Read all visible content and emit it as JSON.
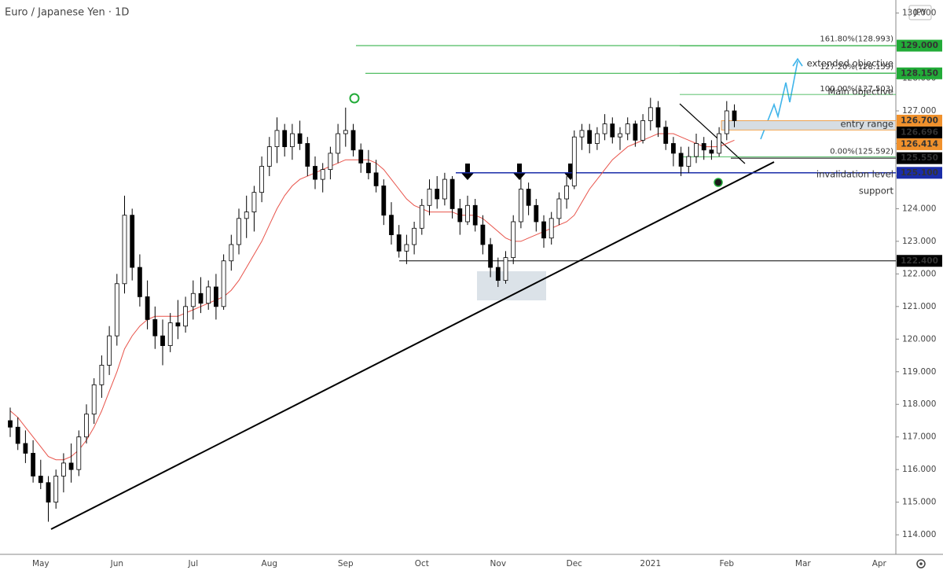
{
  "chart_data": {
    "type": "candlestick",
    "title": "Euro / Japanese Yen · 1D",
    "currency": "JPY",
    "categories": [
      null,
      null,
      null,
      null,
      "May",
      null,
      null,
      null,
      null,
      null,
      null,
      null,
      null,
      null,
      "Jun",
      null,
      null,
      null,
      null,
      null,
      null,
      null,
      null,
      null,
      "Jul",
      null,
      null,
      null,
      null,
      null,
      null,
      null,
      null,
      null,
      "Aug",
      null,
      null,
      null,
      null,
      null,
      null,
      null,
      null,
      null,
      "Sep",
      null,
      null,
      null,
      null,
      null,
      null,
      null,
      null,
      null,
      "Oct",
      null,
      null,
      null,
      null,
      null,
      null,
      null,
      null,
      null,
      "Nov",
      null,
      null,
      null,
      null,
      null,
      null,
      null,
      null,
      null,
      "Dec",
      null,
      null,
      null,
      null,
      null,
      null,
      null,
      null,
      null,
      "2021",
      null,
      null,
      null,
      null,
      null,
      null,
      null,
      null,
      null,
      "Feb",
      null,
      null,
      null,
      null,
      null,
      null,
      null,
      null,
      null,
      "Mar",
      null,
      null,
      null,
      null,
      null,
      null,
      null,
      null,
      null,
      "Apr"
    ],
    "ohlc": [
      [
        117.5,
        117.9,
        117.0,
        117.3
      ],
      [
        117.3,
        117.6,
        116.6,
        116.8
      ],
      [
        116.8,
        117.2,
        116.2,
        116.5
      ],
      [
        116.5,
        116.9,
        115.6,
        115.8
      ],
      [
        115.8,
        116.3,
        115.4,
        115.6
      ],
      [
        115.6,
        115.8,
        114.4,
        115.0
      ],
      [
        115.0,
        116.0,
        114.8,
        115.8
      ],
      [
        115.8,
        116.5,
        115.3,
        116.2
      ],
      [
        116.2,
        116.8,
        115.6,
        116.0
      ],
      [
        116.0,
        117.2,
        115.8,
        117.0
      ],
      [
        117.0,
        118.0,
        116.8,
        117.7
      ],
      [
        117.7,
        118.8,
        117.4,
        118.6
      ],
      [
        118.6,
        119.5,
        118.2,
        119.2
      ],
      [
        119.2,
        120.4,
        118.9,
        120.1
      ],
      [
        120.1,
        122.0,
        119.8,
        121.7
      ],
      [
        121.7,
        124.4,
        121.4,
        123.8
      ],
      [
        123.8,
        124.0,
        121.8,
        122.2
      ],
      [
        122.2,
        122.6,
        121.0,
        121.3
      ],
      [
        121.3,
        121.8,
        120.3,
        120.6
      ],
      [
        120.6,
        121.0,
        119.7,
        120.1
      ],
      [
        120.1,
        120.6,
        119.2,
        119.8
      ],
      [
        119.8,
        120.8,
        119.6,
        120.5
      ],
      [
        120.5,
        121.2,
        120.0,
        120.4
      ],
      [
        120.4,
        121.3,
        120.2,
        121.0
      ],
      [
        121.0,
        121.8,
        120.6,
        121.4
      ],
      [
        121.4,
        121.9,
        120.8,
        121.1
      ],
      [
        121.1,
        121.8,
        120.9,
        121.6
      ],
      [
        121.6,
        122.0,
        120.6,
        121.0
      ],
      [
        121.0,
        122.6,
        120.9,
        122.4
      ],
      [
        122.4,
        123.2,
        122.1,
        122.9
      ],
      [
        122.9,
        124.0,
        122.6,
        123.7
      ],
      [
        123.7,
        124.4,
        123.1,
        123.9
      ],
      [
        123.9,
        124.7,
        123.3,
        124.5
      ],
      [
        124.5,
        125.6,
        124.2,
        125.3
      ],
      [
        125.3,
        126.2,
        125.0,
        125.9
      ],
      [
        125.9,
        126.8,
        125.4,
        126.4
      ],
      [
        126.4,
        126.6,
        125.6,
        125.9
      ],
      [
        125.9,
        126.6,
        125.5,
        126.3
      ],
      [
        126.3,
        126.7,
        125.8,
        126.0
      ],
      [
        126.0,
        126.2,
        125.0,
        125.3
      ],
      [
        125.3,
        125.6,
        124.6,
        124.9
      ],
      [
        124.9,
        125.4,
        124.5,
        125.2
      ],
      [
        125.2,
        125.9,
        124.9,
        125.7
      ],
      [
        125.7,
        126.6,
        125.4,
        126.3
      ],
      [
        126.3,
        127.1,
        125.9,
        126.4
      ],
      [
        126.4,
        126.6,
        125.6,
        125.8
      ],
      [
        125.8,
        126.0,
        125.1,
        125.4
      ],
      [
        125.4,
        125.8,
        124.9,
        125.1
      ],
      [
        125.1,
        125.5,
        124.5,
        124.7
      ],
      [
        124.7,
        124.9,
        123.5,
        123.8
      ],
      [
        123.8,
        124.2,
        122.9,
        123.2
      ],
      [
        123.2,
        123.5,
        122.5,
        122.7
      ],
      [
        122.7,
        123.2,
        122.3,
        122.9
      ],
      [
        122.9,
        123.6,
        122.6,
        123.4
      ],
      [
        123.4,
        124.3,
        123.2,
        124.1
      ],
      [
        124.1,
        124.9,
        123.8,
        124.6
      ],
      [
        124.6,
        125.0,
        124.0,
        124.3
      ],
      [
        124.3,
        125.1,
        124.1,
        124.9
      ],
      [
        124.9,
        125.0,
        123.7,
        124.0
      ],
      [
        124.0,
        124.3,
        123.2,
        123.6
      ],
      [
        123.6,
        124.4,
        123.5,
        124.1
      ],
      [
        124.1,
        124.3,
        123.3,
        123.5
      ],
      [
        123.5,
        123.8,
        122.6,
        122.9
      ],
      [
        122.9,
        123.1,
        121.9,
        122.2
      ],
      [
        122.2,
        122.5,
        121.6,
        121.8
      ],
      [
        121.8,
        122.7,
        121.7,
        122.5
      ],
      [
        122.5,
        123.8,
        122.3,
        123.6
      ],
      [
        123.6,
        125.0,
        123.4,
        124.6
      ],
      [
        124.6,
        124.8,
        123.8,
        124.1
      ],
      [
        124.1,
        124.3,
        123.3,
        123.6
      ],
      [
        123.6,
        123.8,
        122.8,
        123.1
      ],
      [
        123.1,
        123.9,
        122.9,
        123.7
      ],
      [
        123.7,
        124.5,
        123.5,
        124.3
      ],
      [
        124.3,
        125.0,
        124.0,
        124.7
      ],
      [
        124.7,
        126.4,
        124.6,
        126.2
      ],
      [
        126.2,
        126.6,
        125.8,
        126.4
      ],
      [
        126.4,
        126.6,
        125.7,
        126.0
      ],
      [
        126.0,
        126.5,
        125.8,
        126.3
      ],
      [
        126.3,
        126.9,
        126.1,
        126.6
      ],
      [
        126.6,
        126.8,
        126.0,
        126.2
      ],
      [
        126.2,
        126.5,
        125.8,
        126.3
      ],
      [
        126.3,
        126.8,
        126.1,
        126.6
      ],
      [
        126.6,
        126.7,
        125.9,
        126.1
      ],
      [
        126.1,
        126.9,
        126.0,
        126.7
      ],
      [
        126.7,
        127.4,
        126.4,
        127.1
      ],
      [
        127.1,
        127.3,
        126.2,
        126.5
      ],
      [
        126.5,
        126.7,
        125.8,
        126.0
      ],
      [
        126.0,
        126.2,
        125.3,
        125.7
      ],
      [
        125.7,
        125.9,
        125.0,
        125.3
      ],
      [
        125.3,
        125.9,
        125.1,
        125.6
      ],
      [
        125.6,
        126.3,
        125.4,
        126.0
      ],
      [
        126.0,
        126.2,
        125.5,
        125.8
      ],
      [
        125.8,
        126.1,
        125.5,
        125.7
      ],
      [
        125.7,
        126.5,
        125.6,
        126.3
      ],
      [
        126.3,
        127.3,
        126.1,
        127.0
      ],
      [
        127.0,
        127.2,
        126.5,
        126.7
      ],
      null,
      null,
      null,
      null,
      null,
      null,
      null,
      null,
      null,
      null,
      null,
      null,
      null,
      null,
      null,
      null,
      null,
      null,
      null
    ],
    "up_color": "#ffffff",
    "down_color": "#000000",
    "ma": {
      "color": "#e8534a",
      "values": [
        117.8,
        117.6,
        117.3,
        117.0,
        116.7,
        116.4,
        116.3,
        116.3,
        116.4,
        116.6,
        116.9,
        117.3,
        117.8,
        118.4,
        119.0,
        119.7,
        120.1,
        120.4,
        120.6,
        120.7,
        120.7,
        120.7,
        120.7,
        120.8,
        120.9,
        121.0,
        121.1,
        121.2,
        121.3,
        121.5,
        121.8,
        122.2,
        122.6,
        123.0,
        123.5,
        124.0,
        124.4,
        124.7,
        124.9,
        125.0,
        125.1,
        125.2,
        125.3,
        125.4,
        125.5,
        125.5,
        125.5,
        125.5,
        125.4,
        125.2,
        124.9,
        124.6,
        124.3,
        124.1,
        124.0,
        123.9,
        123.9,
        123.9,
        123.9,
        123.8,
        123.8,
        123.8,
        123.7,
        123.5,
        123.3,
        123.1,
        123.0,
        123.0,
        123.1,
        123.2,
        123.3,
        123.4,
        123.5,
        123.6,
        123.8,
        124.2,
        124.6,
        124.9,
        125.2,
        125.5,
        125.7,
        125.9,
        126.0,
        126.1,
        126.2,
        126.3,
        126.3,
        126.3,
        126.2,
        126.1,
        126.0,
        125.9,
        125.9,
        125.9,
        126.0,
        126.1,
        null,
        null,
        null,
        null,
        null,
        null,
        null,
        null,
        null,
        null,
        null,
        null,
        null,
        null,
        null,
        null,
        null,
        null,
        null
      ]
    },
    "ylim": [
      113.4,
      130.4
    ],
    "yticks": [
      {
        "value": 114,
        "label": "114.000"
      },
      {
        "value": 115,
        "label": "115.000"
      },
      {
        "value": 116,
        "label": "116.000"
      },
      {
        "value": 117,
        "label": "117.000"
      },
      {
        "value": 118,
        "label": "118.000"
      },
      {
        "value": 119,
        "label": "119.000"
      },
      {
        "value": 120,
        "label": "120.000"
      },
      {
        "value": 121,
        "label": "121.000"
      },
      {
        "value": 122,
        "label": "122.000"
      },
      {
        "value": 123,
        "label": "123.000"
      },
      {
        "value": 124,
        "label": "124.000"
      },
      {
        "value": 125,
        "label": "125.000"
      },
      {
        "value": 126,
        "label": "126.000"
      },
      {
        "value": 127,
        "label": "127.000"
      },
      {
        "value": 128,
        "label": "128.000"
      },
      {
        "value": 129,
        "label": "129.000"
      },
      {
        "value": 130,
        "label": "130.000"
      }
    ],
    "price_labels": [
      {
        "value": 129,
        "label": "129.000",
        "color": "#22ab38"
      },
      {
        "value": 128.15,
        "label": "128.150",
        "color": "#22ab38"
      },
      {
        "value": 126.7,
        "label": "126.700",
        "color": "#f0912c"
      },
      {
        "value": 126.696,
        "label": "126.696",
        "color": "#000000"
      },
      {
        "value": 126.414,
        "label": "126.414",
        "color": "#f0912c"
      },
      {
        "value": 125.55,
        "label": "125.550",
        "color": "#000000"
      },
      {
        "value": 125.1,
        "label": "125.100",
        "color": "#1a2ca8"
      },
      {
        "value": 122.4,
        "label": "122.400",
        "color": "#000000"
      }
    ],
    "fib_levels": [
      {
        "value": 128.993,
        "label": "161.80%(128.993)"
      },
      {
        "value": 128.159,
        "label": "127.20%(128.159)"
      },
      {
        "value": 127.503,
        "label": "100.00%(127.503)"
      },
      {
        "value": 125.592,
        "label": "0.00%(125.592)"
      }
    ],
    "fib_color": "#22ab38",
    "notes": [
      {
        "text": "extended objective",
        "color": "#22ab38"
      },
      {
        "text": "Main objective",
        "color": "#22ab38"
      },
      {
        "text": "entry range",
        "color": "#f0912c"
      },
      {
        "text": "invalidation level",
        "color": "#000000"
      },
      {
        "text": "support",
        "color": "#1a2ca8"
      }
    ]
  }
}
